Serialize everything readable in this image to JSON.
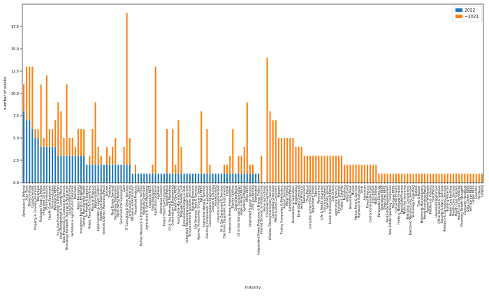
{
  "chart_data": {
    "type": "bar",
    "stacked": true,
    "title": "",
    "xlabel": "industry",
    "ylabel": "number of stocks",
    "ylim": [
      0,
      20
    ],
    "yticks": [
      0.0,
      2.5,
      5.0,
      7.5,
      10.0,
      12.5,
      15.0,
      17.5
    ],
    "ytick_labels": [
      "0.0",
      "2.5",
      "5.0",
      "7.5",
      "10.0",
      "12.5",
      "15.0",
      "17.5"
    ],
    "legend_position": "top-right",
    "grid": false,
    "series": [
      {
        "name": "2022",
        "color": "#1f77b4",
        "values": [
          8,
          7,
          7,
          6,
          5,
          5,
          4,
          4,
          4,
          4,
          4,
          4,
          3,
          3,
          3,
          3,
          3,
          3,
          3,
          3,
          3,
          3,
          2,
          2,
          2,
          2,
          2,
          2,
          2,
          2,
          2,
          2,
          2,
          2,
          2,
          2,
          2,
          2,
          1,
          1,
          1,
          1,
          1,
          1,
          1,
          1,
          1,
          1,
          1,
          1,
          1,
          1,
          1,
          1,
          1,
          1,
          1,
          1,
          1,
          1,
          1,
          1,
          1,
          1,
          1,
          1,
          1,
          1,
          1,
          1,
          1,
          1,
          1,
          1,
          1,
          1,
          1,
          1,
          1,
          1,
          1,
          1,
          1,
          0,
          0,
          0,
          0,
          0,
          0,
          0,
          0,
          0,
          0,
          0,
          0,
          0,
          0,
          0,
          0,
          0,
          0,
          0,
          0,
          0,
          0,
          0,
          0,
          0,
          0,
          0,
          0,
          0,
          0,
          0,
          0,
          0,
          0,
          0,
          0,
          0,
          0,
          0,
          0,
          0,
          0,
          0,
          0,
          0,
          0,
          0,
          0,
          0,
          0,
          0,
          0,
          0,
          0,
          0,
          0,
          0,
          0,
          0,
          0,
          0,
          0,
          0,
          0,
          0,
          0,
          0,
          0,
          0,
          0,
          0,
          0,
          0,
          0,
          0,
          0,
          0,
          0
        ]
      },
      {
        "name": "~2021",
        "color": "#ff7f0e",
        "values": [
          3,
          6,
          6,
          7,
          1,
          1,
          7,
          1,
          8,
          2,
          2,
          3,
          6,
          5,
          2,
          8,
          2,
          2,
          1,
          3,
          3,
          3,
          0,
          1,
          4,
          7,
          2,
          1,
          0,
          2,
          1,
          2,
          3,
          0,
          0,
          2,
          17,
          3,
          0,
          1,
          0,
          0,
          0,
          0,
          0,
          1,
          12,
          0,
          0,
          0,
          5,
          0,
          5,
          1,
          6,
          3,
          0,
          0,
          0,
          0,
          0,
          0,
          7,
          0,
          5,
          1,
          0,
          0,
          0,
          0,
          1,
          1,
          2,
          5,
          0,
          2,
          2,
          3,
          8,
          1,
          1,
          0,
          0,
          3,
          0,
          14,
          8,
          7,
          7,
          5,
          5,
          5,
          5,
          5,
          5,
          4,
          4,
          4,
          3,
          3,
          3,
          3,
          3,
          3,
          3,
          3,
          3,
          3,
          3,
          3,
          3,
          3,
          2,
          2,
          2,
          2,
          2,
          2,
          2,
          2,
          2,
          2,
          2,
          2,
          1,
          1,
          1,
          1,
          1,
          1,
          1,
          1,
          1,
          1,
          1,
          1,
          1,
          1,
          1,
          1,
          1,
          1,
          1,
          1,
          1,
          1,
          1,
          1,
          1,
          1,
          1,
          1,
          1,
          1,
          1,
          1,
          1,
          1,
          1,
          1,
          1
        ]
      }
    ],
    "categories": [
      "Aerospace & Defense",
      "Auto Parts",
      "Biotechnology",
      "Conglomerates",
      "Property & Casualty Insurance",
      "Beverages",
      "Packaged Foods & Meats",
      "Integrated Oil & Gas",
      "Pharmaceuticals",
      "Health Care Equipment",
      "Semiconductors",
      "Residential REITs",
      "Oil & Gas Exploration & Production",
      "Asset Management & Custody Banks",
      "Data Processing & Outsourced Services",
      "Technology Hardware, Storage & Peripherals",
      "Industrial Machinery",
      "Fertilizers & Agricultural Chemicals",
      "Railroads",
      "Paper Packaging",
      "Investment Banking & Brokerage",
      "General Merchandise Stores",
      "Air Freight & Logistics",
      "Hotels, Resorts & Cruise Lines",
      "Personal Products",
      "Regional Banks",
      "Hypermarkets & Super Centers",
      "Health Care Distributors",
      "Internet & Direct Marketing Retail",
      "Airlines",
      "Trucking",
      "Real Estate Services",
      "Technology Distributors",
      "Multi-Sector Holdings",
      "Semiconductor Equipment",
      "Gold",
      "IT Consulting & Other Services",
      "Construction Materials",
      "Movies & Entertainment",
      "Household Products",
      "Steel",
      "Human Resource & Employment Services",
      "Specialty Chemicals",
      "Agricultural & Farm Machinery",
      "Industrial REITs",
      "Food Distributors",
      "Application Software",
      "Footwear",
      "Alternative Carriers",
      "Heavy Electrical Equipment",
      "Apparel Retail",
      "Oil & Gas Refining & Marketing",
      "Construction & Engineering",
      "Health Care REITs",
      "Automobile Manufacturers",
      "Managed Health Care",
      "Financial Exchanges & Data",
      "Integrated Telecommunication Services",
      "Environmental & Facilities Services",
      "Building Products",
      "Life Sciences Tools & Services",
      "Apparel, Accessories & Luxury Goods",
      "Retail REITs",
      "Interactive Media & Services",
      "Electrical Components & Equipment",
      "Communications Equipment",
      "Casinos & Gaming",
      "Homebuilding",
      "Industrial Conglomerates",
      "Oil & Gas Equipment & Services",
      "Electronic Equipment & Instruments",
      "Copper",
      "Interactive Home Entertainment",
      "Electric Utilities",
      "Diversified Banks",
      "Oil & Gas Storage & Transportation",
      "Hotel & Resort REITs",
      "Systems Software",
      "Office REITs",
      "Diversified Support Services",
      "Oil & Gas Drilling",
      "Distributors",
      "Independent Power Producers & Energy Traders",
      "Internet Services & Infrastructure",
      "Home Furnishings",
      "Consumer Electronics",
      "Wireless Telecommunication Services",
      "Commodity Chemicals",
      "Metal & Glass Containers",
      "Brewers",
      "Trading Companies & Distributors",
      "Airport Services",
      "Water Utilities",
      "Automotive Retail",
      "Housewares & Specialties",
      "Broadcasting",
      "Diversified Chemicals",
      "Leisure Products",
      "Restaurants",
      "Drug Retail",
      "Computer & Electronics Retail",
      "Department Stores",
      "Tobacco",
      "Reinsurance",
      "Life & Health Insurance",
      "Insurance Brokers",
      "Specialty Stores",
      "Home Improvement Retail",
      "Soft Drinks",
      "Agricultural Products",
      "Education Services",
      "Cable & Satellite",
      "Publishing",
      "Advertising",
      "Leisure Facilities",
      "Marine",
      "Marine Ports & Services",
      "Highways & Railtracks",
      "Silver",
      "Aluminum",
      "Forest Products",
      "Coal & Consumable Fuels",
      "Gas Utilities",
      "Multi-Utilities",
      "Renewable Electricity",
      "Specialized REITs",
      "Diversified REITs",
      "Real Estate Development",
      "Real Estate Operating Companies",
      "Mortgage REITs",
      "Consumer Finance",
      "Thrifts & Mortgage Finance",
      "Specialized Finance",
      "Multi-line Insurance",
      "Electronic Components",
      "Electronic Manufacturing Services",
      "Technology Consulting",
      "Textiles",
      "Tires & Rubber",
      "Motorcycle Manufacturers",
      "Home Furnishing Retail",
      "Apparel Wholesale",
      "Distillers & Vintners",
      "Food Retail",
      "Household Appliances",
      "Office Services & Supplies",
      "Security & Alarm Services",
      "Research & Consulting Services",
      "Building Materials",
      "Health Care Facilities",
      "Health Care Services",
      "Health Care Supplies",
      "Health Care Technology",
      "Pharmacy Benefit Managers",
      "Computer Hardware",
      "Data Center REITs",
      "Self Storage REITs",
      "Timber REITs",
      "Cannabis",
      "Hardware",
      "Lodging"
    ],
    "visible_tick_labels": [
      "Aerospace & Defense",
      "Auto Parts",
      "Biotechnology",
      "Conglomerates",
      "Property & Casualty Insurance",
      "Beverages",
      "Packaged Foods & Meats",
      "Integrated Oil & Gas",
      "Pharmaceuticals",
      "Health Care Equipment",
      "Semiconductors",
      "Residential REITs",
      "Oil & Gas Exploration & Production",
      "Asset Management & Custody Banks",
      "Data Processing & Outsourced Services",
      "Technology Hardware, Storage & Peripherals",
      "Industrial Machinery",
      "Fertilizers & Agricultural Chemicals",
      "Railroads",
      "Paper Packaging",
      "Investment Banking & Brokerage",
      "General Merchandise Stores",
      "Air Freight & Logistics",
      "Hotels, Resorts & Cruise Lines",
      "Personal Products",
      "Regional Banks",
      "Hypermarkets & Super Centers",
      "Health Care Distributors",
      "Internet & Direct Marketing Retail",
      "Airlines",
      "Trucking",
      "Real Estate Services",
      "Technology Distributors",
      "Multi-Sector Holdings",
      "Semiconductor Equipment",
      "Gold",
      "IT Consulting & Other Services",
      "Construction Materials",
      "Movies & Entertainment",
      "Household Products",
      "Steel",
      "Human Resource & Employment Services",
      "Specialty Chemicals",
      "Agricultural & Farm Machinery",
      "Industrial REITs",
      "Food Distributors",
      "Application Software",
      "Footwear",
      "Alternative Carriers",
      "Heavy Electrical Equipment",
      "Apparel Retail",
      "Oil & Gas Refining & Marketing",
      "Construction & Engineering",
      "Health Care REITs",
      "Automobile Manufacturers",
      "Managed Health Care",
      "Financial Exchanges & Data",
      "Integrated Telecommunication Services",
      "Environmental & Facilities Services",
      "Building Products",
      "Life Sciences Tools & Services",
      "Apparel, Accessories & Luxury Goods",
      "Retail REITs",
      "Interactive Media & Services",
      "Electrical Components & Equipment",
      "Communications Equipment",
      "Casinos & Gaming",
      "Homebuilding",
      "Industrial Conglomerates",
      "Oil & Gas Equipment & Services",
      "Electronic Equipment & Instruments",
      "Copper",
      "Interactive Home Entertainment",
      "Electric Utilities",
      "Diversified Banks",
      "Oil & Gas Storage & Transportation",
      "Hotel & Resort REITs",
      "Systems Software",
      "Office REITs",
      "Diversified Support Services",
      "Oil & Gas Drilling",
      "Distributors",
      "Independent Power Producers & Energy Traders",
      "Internet Services & Infrastructure",
      "Home Furnishings",
      "Consumer Electronics",
      "Wireless Telecommunication Services",
      "Commodity Chemicals",
      "Metal & Glass Containers",
      "Brewers",
      "Trading Companies & Distributors",
      "Airport Services",
      "Water Utilities",
      "Automotive Retail",
      "Housewares & Specialties",
      "Broadcasting",
      "Diversified Chemicals",
      "Leisure Products",
      "Restaurants",
      "Drug Retail",
      "Computer & Electronics Retail",
      "Department Stores",
      "Tobacco",
      "Reinsurance",
      "Life & Health Insurance",
      "Insurance Brokers",
      "Specialty Stores",
      "Home Improvement Retail",
      "Soft Drinks",
      "Agricultural Products",
      "Education Services",
      "Cable & Satellite",
      "Publishing",
      "Advertising",
      "Leisure Facilities",
      "Marine",
      "Marine Ports & Services",
      "Highways & Railtracks",
      "Silver",
      "Aluminum",
      "Forest Products",
      "Coal & Consumable Fuels",
      "Gas Utilities",
      "Multi-Utilities",
      "Renewable Electricity",
      "Specialized REITs",
      "Diversified REITs",
      "Real Estate Development",
      "Real Estate Operating Companies",
      "Mortgage REITs",
      "Consumer Finance",
      "Thrifts & Mortgage Finance",
      "Specialized Finance",
      "Multi-line Insurance",
      "Electronic Components",
      "Electronic Manufacturing Services",
      "Technology Consulting",
      "Textiles",
      "Tires & Rubber",
      "Motorcycle Manufacturers",
      "Home Furnishing Retail",
      "Apparel Wholesale",
      "Distillers & Vintners",
      "Food Retail",
      "Household Appliances",
      "Office Services & Supplies",
      "Security & Alarm Services",
      "Research & Consulting Services",
      "Building Materials",
      "Health Care Facilities",
      "Health Care Services",
      "Health Care Supplies",
      "Health Care Technology",
      "Pharmacy Benefit Managers",
      "Computer Hardware",
      "Data Center REITs",
      "Self Storage REITs",
      "Timber REITs",
      "Cannabis",
      "Hardware",
      "Lodging"
    ]
  }
}
